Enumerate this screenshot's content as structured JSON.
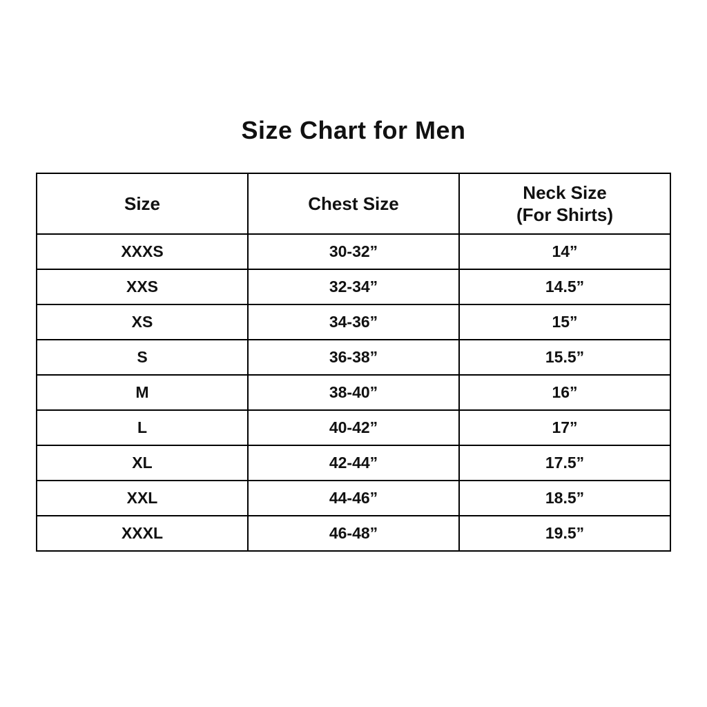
{
  "title": "Size Chart for Men",
  "colors": {
    "background": "#ffffff",
    "border": "#000000",
    "text": "#111111"
  },
  "table": {
    "headers": [
      {
        "label": "Size",
        "sublabel": ""
      },
      {
        "label": "Chest Size",
        "sublabel": ""
      },
      {
        "label": "Neck Size",
        "sublabel": "(For Shirts)"
      }
    ],
    "rows": [
      {
        "size": "XXXS",
        "chest": "30-32”",
        "neck": "14”"
      },
      {
        "size": "XXS",
        "chest": "32-34”",
        "neck": "14.5”"
      },
      {
        "size": "XS",
        "chest": "34-36”",
        "neck": "15”"
      },
      {
        "size": "S",
        "chest": "36-38”",
        "neck": "15.5”"
      },
      {
        "size": "M",
        "chest": "38-40”",
        "neck": "16”"
      },
      {
        "size": "L",
        "chest": "40-42”",
        "neck": "17”"
      },
      {
        "size": "XL",
        "chest": "42-44”",
        "neck": "17.5”"
      },
      {
        "size": "XXL",
        "chest": "44-46”",
        "neck": "18.5”"
      },
      {
        "size": "XXXL",
        "chest": "46-48”",
        "neck": "19.5”"
      }
    ]
  },
  "chart_data": {
    "type": "table",
    "title": "Size Chart for Men",
    "columns": [
      "Size",
      "Chest Size",
      "Neck Size (For Shirts)"
    ],
    "rows": [
      [
        "XXXS",
        "30-32”",
        "14”"
      ],
      [
        "XXS",
        "32-34”",
        "14.5”"
      ],
      [
        "XS",
        "34-36”",
        "15”"
      ],
      [
        "S",
        "36-38”",
        "15.5”"
      ],
      [
        "M",
        "38-40”",
        "16”"
      ],
      [
        "L",
        "40-42”",
        "17”"
      ],
      [
        "XL",
        "42-44”",
        "17.5”"
      ],
      [
        "XXL",
        "44-46”",
        "18.5”"
      ],
      [
        "XXXL",
        "46-48”",
        "19.5”"
      ]
    ],
    "layout": {
      "header_row_taller": true,
      "column_width_fractions": [
        0.333,
        0.333,
        0.334
      ],
      "grid": true
    }
  }
}
